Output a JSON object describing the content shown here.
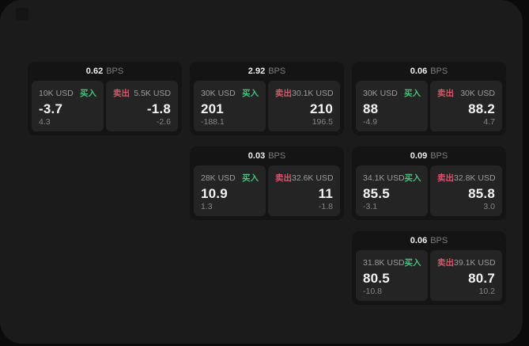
{
  "colors": {
    "window_background": "#1b1b1b",
    "card_background": "#141414",
    "tile_background": "#242424",
    "buy_accent": "#4cbf7f",
    "sell_accent": "#d8566b"
  },
  "cards": [
    {
      "spread": "0.62",
      "spread_unit": "BPS",
      "buy": {
        "amount": "10K USD",
        "label": "买入",
        "price": "-3.7",
        "delta": "4.3"
      },
      "sell": {
        "label": "卖出",
        "amount": "5.5K USD",
        "price": "-1.8",
        "delta": "-2.6"
      }
    },
    {
      "spread": "2.92",
      "spread_unit": "BPS",
      "buy": {
        "amount": "30K USD",
        "label": "买入",
        "price": "201",
        "delta": "-188.1"
      },
      "sell": {
        "label": "卖出",
        "amount": "30.1K USD",
        "price": "210",
        "delta": "196.5"
      }
    },
    {
      "spread": "0.06",
      "spread_unit": "BPS",
      "buy": {
        "amount": "30K USD",
        "label": "买入",
        "price": "88",
        "delta": "-4.9"
      },
      "sell": {
        "label": "卖出",
        "amount": "30K USD",
        "price": "88.2",
        "delta": "4.7"
      }
    },
    {
      "spread": "0.03",
      "spread_unit": "BPS",
      "buy": {
        "amount": "28K USD",
        "label": "买入",
        "price": "10.9",
        "delta": "1.3"
      },
      "sell": {
        "label": "卖出",
        "amount": "32.6K USD",
        "price": "11",
        "delta": "-1.8"
      }
    },
    {
      "spread": "0.09",
      "spread_unit": "BPS",
      "buy": {
        "amount": "34.1K USD",
        "label": "买入",
        "price": "85.5",
        "delta": "-3.1"
      },
      "sell": {
        "label": "卖出",
        "amount": "32.8K USD",
        "price": "85.8",
        "delta": "3.0"
      }
    },
    {
      "spread": "0.06",
      "spread_unit": "BPS",
      "buy": {
        "amount": "31.8K USD",
        "label": "买入",
        "price": "80.5",
        "delta": "-10.8"
      },
      "sell": {
        "label": "卖出",
        "amount": "39.1K USD",
        "price": "80.7",
        "delta": "10.2"
      }
    }
  ]
}
